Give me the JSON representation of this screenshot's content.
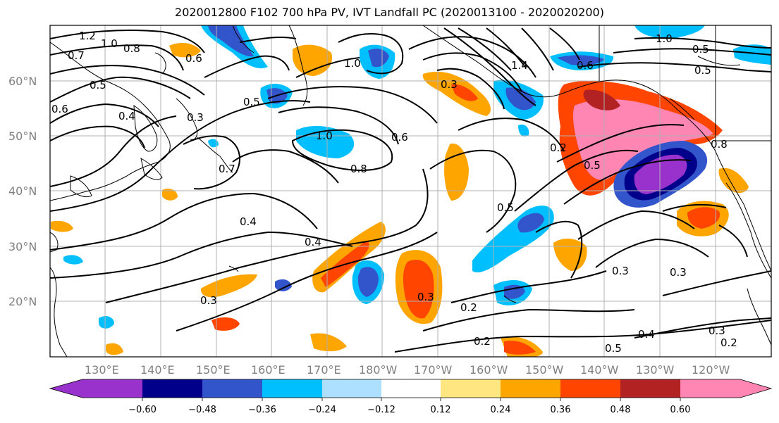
{
  "title": "2020012800 F102 700 hPa PV, IVT Landfall PC (2020013100 - 2020020200)",
  "lat_labels": [
    "60°N",
    "50°N",
    "40°N",
    "30°N",
    "20°N"
  ],
  "lon_labels": [
    "130°E",
    "140°E",
    "150°E",
    "160°E",
    "170°E",
    "180°W",
    "170°W",
    "160°W",
    "150°W",
    "140°W",
    "130°W",
    "120°W"
  ],
  "contour_labels": [
    "1.2",
    "1.0",
    "0.8",
    "0.7",
    "0.5",
    "0.6",
    "0.4",
    "0.3",
    "0.6",
    "0.5",
    "1.0",
    "0.7",
    "0.6",
    "1.0",
    "0.8",
    "0.4",
    "0.4",
    "0.3",
    "0.2",
    "0.2",
    "0.3",
    "0.5",
    "0.3",
    "0.3",
    "0.4",
    "0.3",
    "0.2",
    "0.5",
    "1.4",
    "1.0",
    "0.6",
    "0.5",
    "0.8",
    "0.5",
    "0.2",
    "0.3",
    "0.5"
  ],
  "colorbar": {
    "colors": [
      "#9932CC",
      "#00008B",
      "#3355CC",
      "#00BFFF",
      "#ADDFFF",
      "#FFFFFF",
      "#FFE680",
      "#FFA500",
      "#FF4500",
      "#B22222",
      "#FF85B3"
    ],
    "tick_labels": [
      "−0.60",
      "−0.48",
      "−0.36",
      "−0.24",
      "−0.12",
      "0.12",
      "0.24",
      "0.36",
      "0.48",
      "0.60"
    ]
  },
  "map": {
    "grid": true,
    "fields": [
      "700 hPa PV contours",
      "IVT Landfall PC shading"
    ]
  }
}
